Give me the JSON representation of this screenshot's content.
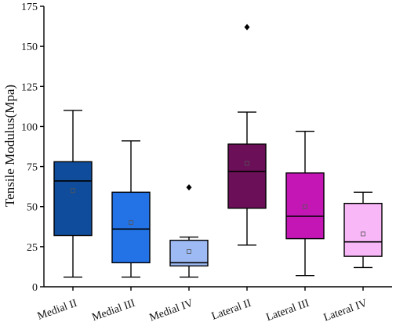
{
  "chart_data": {
    "type": "box",
    "title": "",
    "xlabel": "",
    "ylabel": "Tensile Modulus(Mpa)",
    "ylim": [
      0,
      175
    ],
    "yticks": [
      0,
      25,
      50,
      75,
      100,
      125,
      150,
      175
    ],
    "grid": false,
    "legend": "none",
    "categories": [
      "Medial II",
      "Medial III",
      "Medial IV",
      "Lateral II",
      "Lateral III",
      "Lateral IV"
    ],
    "colors": [
      "#0f4c9c",
      "#2372e6",
      "#9dbaf5",
      "#6b0f58",
      "#c316b4",
      "#f8b8f8"
    ],
    "boxes": [
      {
        "min": 6,
        "q1": 32,
        "median": 66,
        "q3": 78,
        "max": 110,
        "mean": 60,
        "outliers": []
      },
      {
        "min": 6,
        "q1": 15,
        "median": 36,
        "q3": 59,
        "max": 91,
        "mean": 40,
        "outliers": []
      },
      {
        "min": 6,
        "q1": 13,
        "median": 15,
        "q3": 29,
        "max": 31,
        "mean": 22,
        "outliers": [
          62
        ]
      },
      {
        "min": 26,
        "q1": 49,
        "median": 72,
        "q3": 89,
        "max": 109,
        "mean": 77,
        "outliers": [
          162
        ]
      },
      {
        "min": 7,
        "q1": 30,
        "median": 44,
        "q3": 71,
        "max": 97,
        "mean": 50,
        "outliers": []
      },
      {
        "min": 12,
        "q1": 19,
        "median": 28,
        "q3": 52,
        "max": 59,
        "mean": 33,
        "outliers": []
      }
    ]
  }
}
